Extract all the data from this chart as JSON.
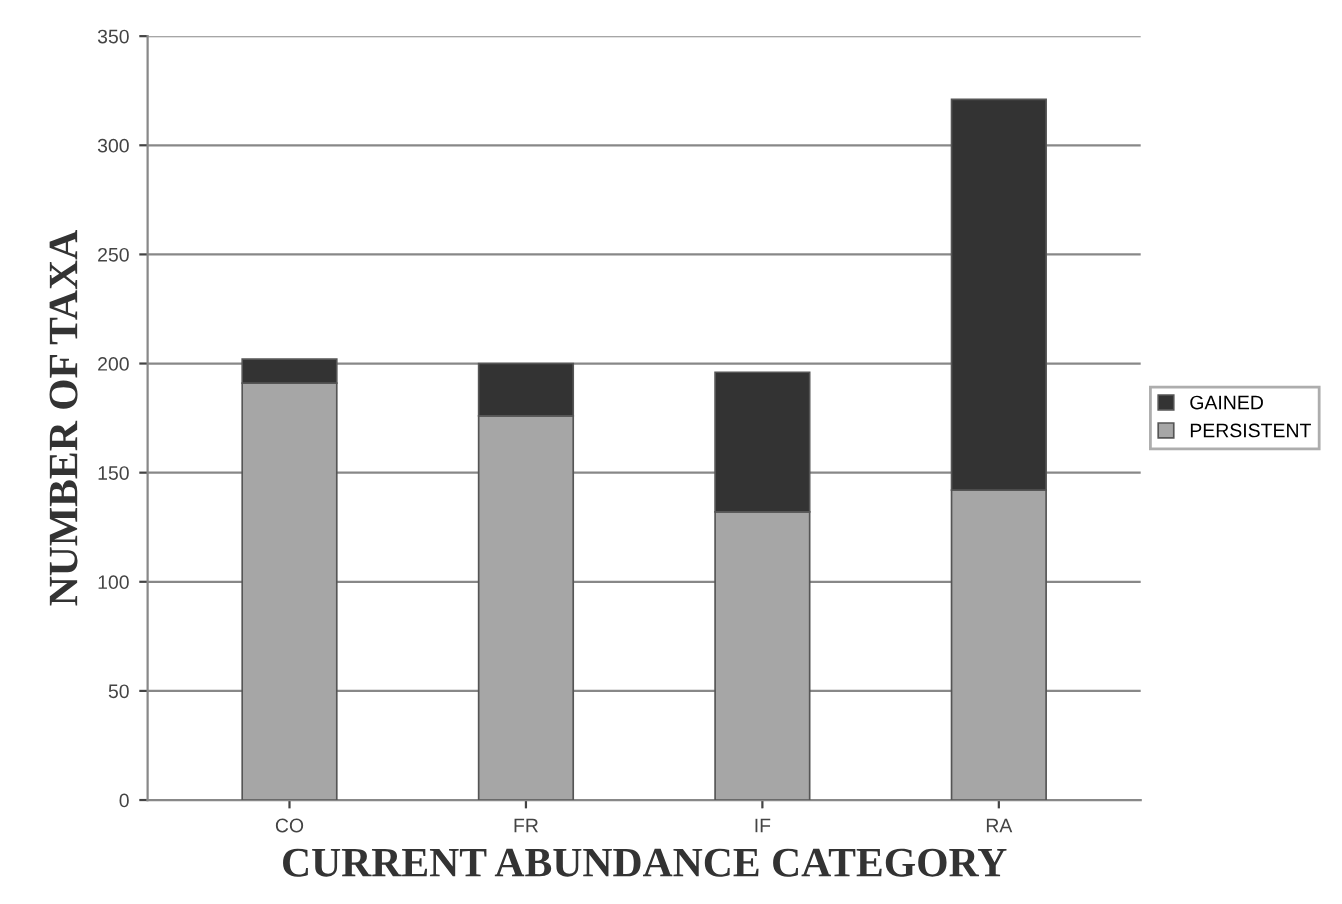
{
  "chart_data": {
    "type": "bar",
    "stacked": true,
    "xlabel": "CURRENT ABUNDANCE CATEGORY",
    "ylabel": "NUMBER OF TAXA",
    "categories": [
      "CO",
      "FR",
      "IF",
      "RA"
    ],
    "series": [
      {
        "name": "PERSISTENT",
        "color": "#a6a6a6",
        "values": [
          191,
          176,
          132,
          142
        ]
      },
      {
        "name": "GAINED",
        "color": "#333333",
        "values": [
          11,
          24,
          64,
          179
        ]
      }
    ],
    "ylim": [
      0,
      350
    ],
    "yticks": [
      0,
      50,
      100,
      150,
      200,
      250,
      300,
      350
    ],
    "grid": "y",
    "legend": "right"
  }
}
